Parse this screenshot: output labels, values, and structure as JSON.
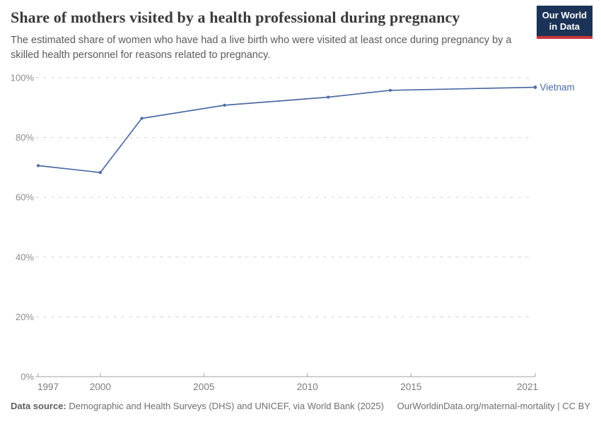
{
  "header": {
    "title": "Share of mothers visited by a health professional during pregnancy",
    "subtitle": "The estimated share of women who have had a live birth who were visited at least once during pregnancy by a skilled health personnel for reasons related to pregnancy.",
    "logo": {
      "line1": "Our World",
      "line2": "in Data",
      "bg_color": "#1b3357",
      "accent_color": "#c5383c"
    }
  },
  "chart_data": {
    "type": "line",
    "title": "Share of mothers visited by a health professional during pregnancy",
    "series": [
      {
        "name": "Vietnam",
        "color": "#4c6ba3",
        "points": [
          {
            "year": 1997,
            "value": 70.6
          },
          {
            "year": 2000,
            "value": 68.3
          },
          {
            "year": 2002,
            "value": 86.4
          },
          {
            "year": 2006,
            "value": 90.8
          },
          {
            "year": 2011,
            "value": 93.5
          },
          {
            "year": 2014,
            "value": 95.8
          },
          {
            "year": 2021,
            "value": 96.8
          }
        ]
      }
    ],
    "xlim": [
      1997,
      2021
    ],
    "ylim": [
      0,
      100
    ],
    "xticks": [
      1997,
      2000,
      2005,
      2010,
      2015,
      2021
    ],
    "yticks": [
      0,
      20,
      40,
      60,
      80,
      100
    ],
    "ytick_suffix": "%",
    "grid": "horizontal-dashed",
    "legend_position": "end-of-line-label",
    "axis_color": "#a3a3a3",
    "gridline_color": "#d9d9d9",
    "ytick_label_color": "#8c8c8c",
    "xtick_label_color": "#7c7c7c"
  },
  "footer": {
    "datasource_label": "Data source:",
    "datasource_text": " Demographic and Health Surveys (DHS) and UNICEF, via World Bank (2025)",
    "right_text": "OurWorldinData.org/maternal-mortality | CC BY"
  }
}
